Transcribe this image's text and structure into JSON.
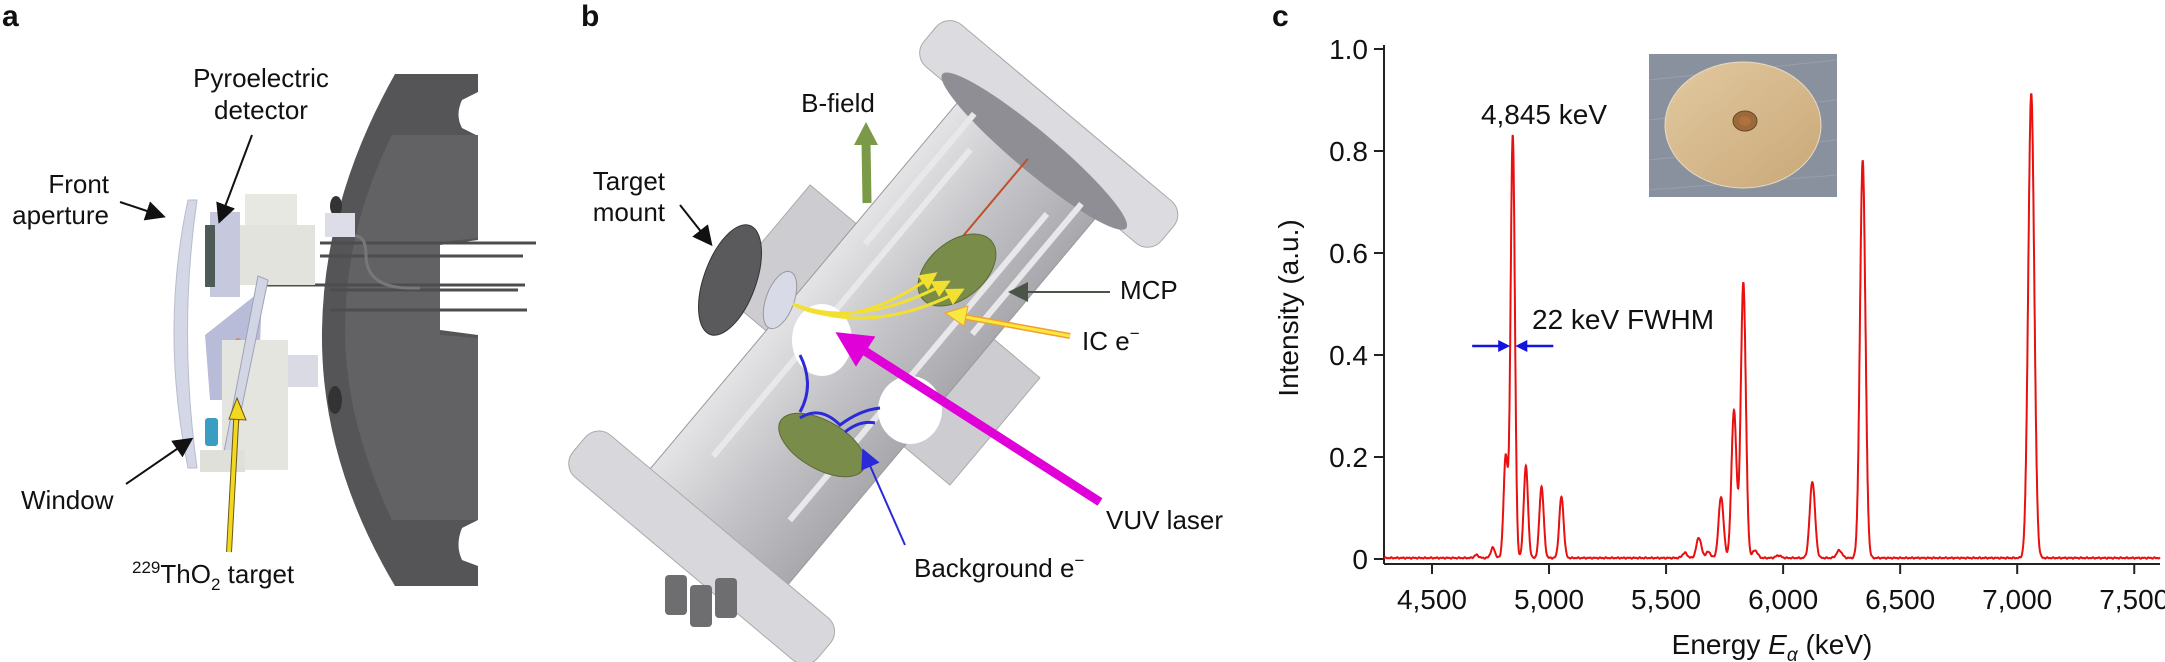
{
  "panels": {
    "a": {
      "letter": "a",
      "labels": {
        "pyro_line1": "Pyroelectric",
        "pyro_line2": "detector",
        "front_line1": "Front",
        "front_line2": "aperture",
        "window": "Window",
        "target_sup": "229",
        "target_main": "ThO",
        "target_sub": "2",
        "target_rest": " target"
      }
    },
    "b": {
      "letter": "b",
      "labels": {
        "bfield": "B-field",
        "target_line1": "Target",
        "target_line2": "mount",
        "mcp": "MCP",
        "ic": "IC e",
        "ic_sup": "−",
        "vuv": "VUV laser",
        "background": "Background e",
        "background_sup": "−"
      },
      "colors": {
        "vuv_laser": "#e000d8",
        "ic_electrons": "#f2e030",
        "background_electrons": "#2a2ad8",
        "b_field": "#7a9a48",
        "mcp": "#7a8c4a"
      }
    },
    "c": {
      "letter": "c"
    }
  },
  "chart_data": {
    "type": "line",
    "xlabel_main": "Energy ",
    "xlabel_var": "E",
    "xlabel_sub": "α",
    "xlabel_unit": " (keV)",
    "ylabel": "Intensity (a.u.)",
    "xlim": [
      4295,
      7610
    ],
    "ylim": [
      0,
      1.0
    ],
    "grid": false,
    "line_color": "#e81010",
    "x_ticks": [
      {
        "v": 4500,
        "label": "4,500"
      },
      {
        "v": 5000,
        "label": "5,000"
      },
      {
        "v": 5500,
        "label": "5,500"
      },
      {
        "v": 6000,
        "label": "6,000"
      },
      {
        "v": 6500,
        "label": "6,500"
      },
      {
        "v": 7000,
        "label": "7,000"
      },
      {
        "v": 7500,
        "label": "7,500"
      }
    ],
    "y_ticks": [
      {
        "v": 0,
        "label": "0"
      },
      {
        "v": 0.2,
        "label": "0.2"
      },
      {
        "v": 0.4,
        "label": "0.4"
      },
      {
        "v": 0.6,
        "label": "0.6"
      },
      {
        "v": 0.8,
        "label": "0.8"
      },
      {
        "v": 1.0,
        "label": "1.0"
      }
    ],
    "peaks": [
      {
        "x": 4690,
        "y": 0.006
      },
      {
        "x": 4760,
        "y": 0.02
      },
      {
        "x": 4815,
        "y": 0.2
      },
      {
        "x": 4845,
        "y": 0.83
      },
      {
        "x": 4901,
        "y": 0.18
      },
      {
        "x": 4968,
        "y": 0.14
      },
      {
        "x": 5053,
        "y": 0.12
      },
      {
        "x": 5580,
        "y": 0.01
      },
      {
        "x": 5640,
        "y": 0.04
      },
      {
        "x": 5680,
        "y": 0.012
      },
      {
        "x": 5735,
        "y": 0.12
      },
      {
        "x": 5790,
        "y": 0.29
      },
      {
        "x": 5830,
        "y": 0.54
      },
      {
        "x": 5880,
        "y": 0.015
      },
      {
        "x": 5980,
        "y": 0.005
      },
      {
        "x": 6125,
        "y": 0.15
      },
      {
        "x": 6240,
        "y": 0.015
      },
      {
        "x": 6340,
        "y": 0.78
      },
      {
        "x": 7060,
        "y": 0.91
      }
    ],
    "annotations": {
      "peak_label": "4,845 keV",
      "fwhm_label": "22 keV FWHM",
      "fwhm_arrow_color": "#1414e0",
      "fwhm_at_intensity": 0.4
    },
    "inset": "photo-of-target-disc"
  }
}
